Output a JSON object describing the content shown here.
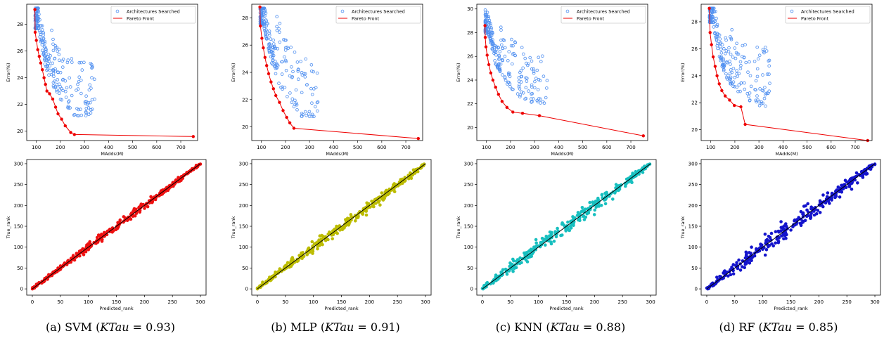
{
  "captions": [
    {
      "label": "(a) SVM (",
      "kt": "KTau",
      "tail": " = 0.93)"
    },
    {
      "label": "(b) MLP (",
      "kt": "KTau",
      "tail": " = 0.91)"
    },
    {
      "label": "(c) KNN (",
      "kt": "KTau",
      "tail": " = 0.88)"
    },
    {
      "label": "(d) RF (",
      "kt": "KTau",
      "tail": " = 0.85)"
    }
  ],
  "chart_data": [
    {
      "panel": "a-top",
      "type": "scatter",
      "xlabel": "MAdds(M)",
      "ylabel": "Error(%)",
      "xlim": [
        60,
        770
      ],
      "ylim": [
        19.3,
        29.5
      ],
      "xticks": [
        100,
        200,
        300,
        400,
        500,
        600,
        700
      ],
      "yticks": [
        20,
        22,
        24,
        26,
        28
      ],
      "legend": {
        "placement": "top-right",
        "entries": [
          "Architectures Searched",
          "Pareto Front"
        ]
      },
      "colors": {
        "searched": "#4f8ff0",
        "pareto": "#ee0000"
      },
      "pareto": [
        [
          94,
          29.1
        ],
        [
          95,
          27.4
        ],
        [
          100,
          26.8
        ],
        [
          106,
          26.1
        ],
        [
          112,
          25.6
        ],
        [
          118,
          25.1
        ],
        [
          125,
          24.6
        ],
        [
          132,
          24.0
        ],
        [
          138,
          23.5
        ],
        [
          144,
          23.0
        ],
        [
          155,
          22.8
        ],
        [
          168,
          22.4
        ],
        [
          180,
          21.8
        ],
        [
          190,
          21.3
        ],
        [
          205,
          20.9
        ],
        [
          220,
          20.4
        ],
        [
          243,
          19.9
        ],
        [
          258,
          19.75
        ],
        [
          752,
          19.6
        ]
      ],
      "searched": {
        "seed": 11,
        "count": 230,
        "front": [
          [
            100,
            27.5
          ],
          [
            130,
            24.6
          ],
          [
            160,
            23.2
          ],
          [
            200,
            22.0
          ],
          [
            250,
            21.0
          ]
        ],
        "spreadX": 250,
        "spreadY": 4.2,
        "xmax": 480
      }
    },
    {
      "panel": "b-top",
      "type": "scatter",
      "xlabel": "MAdds(M)",
      "ylabel": "Error(%)",
      "xlim": [
        60,
        770
      ],
      "ylim": [
        19.0,
        29.0
      ],
      "xticks": [
        100,
        200,
        300,
        400,
        500,
        600,
        700
      ],
      "yticks": [
        20,
        22,
        24,
        26,
        28
      ],
      "legend": {
        "placement": "top-right",
        "entries": [
          "Architectures Searched",
          "Pareto Front"
        ]
      },
      "colors": {
        "searched": "#4f8ff0",
        "pareto": "#ee0000"
      },
      "pareto": [
        [
          94,
          28.8
        ],
        [
          96,
          27.4
        ],
        [
          102,
          26.5
        ],
        [
          108,
          25.8
        ],
        [
          115,
          25.1
        ],
        [
          122,
          24.5
        ],
        [
          130,
          23.9
        ],
        [
          140,
          23.3
        ],
        [
          150,
          22.8
        ],
        [
          160,
          22.3
        ],
        [
          175,
          21.8
        ],
        [
          190,
          21.2
        ],
        [
          205,
          20.7
        ],
        [
          218,
          20.3
        ],
        [
          235,
          19.9
        ],
        [
          752,
          19.15
        ]
      ],
      "searched": {
        "seed": 23,
        "count": 230,
        "front": [
          [
            100,
            27.4
          ],
          [
            135,
            24.5
          ],
          [
            165,
            23.0
          ],
          [
            210,
            21.6
          ],
          [
            260,
            20.6
          ]
        ],
        "spreadX": 240,
        "spreadY": 4.6,
        "xmax": 450
      }
    },
    {
      "panel": "c-top",
      "type": "scatter",
      "xlabel": "MAdds(M)",
      "ylabel": "Error(%)",
      "xlim": [
        60,
        770
      ],
      "ylim": [
        18.9,
        30.4
      ],
      "xticks": [
        100,
        200,
        300,
        400,
        500,
        600,
        700
      ],
      "yticks": [
        20,
        22,
        24,
        26,
        28,
        30
      ],
      "legend": {
        "placement": "top-right",
        "entries": [
          "Architectures Searched",
          "Pareto Front"
        ]
      },
      "colors": {
        "searched": "#4f8ff0",
        "pareto": "#ee0000"
      },
      "pareto": [
        [
          94,
          28.6
        ],
        [
          95,
          27.6
        ],
        [
          98,
          26.8
        ],
        [
          103,
          26.1
        ],
        [
          110,
          25.3
        ],
        [
          118,
          24.6
        ],
        [
          127,
          24.0
        ],
        [
          138,
          23.4
        ],
        [
          150,
          22.8
        ],
        [
          165,
          22.2
        ],
        [
          185,
          21.7
        ],
        [
          210,
          21.3
        ],
        [
          250,
          21.2
        ],
        [
          320,
          21.0
        ],
        [
          752,
          19.3
        ]
      ],
      "searched": {
        "seed": 37,
        "count": 230,
        "front": [
          [
            100,
            27.8
          ],
          [
            130,
            25.2
          ],
          [
            170,
            23.7
          ],
          [
            230,
            22.4
          ],
          [
            300,
            21.8
          ]
        ],
        "spreadX": 260,
        "spreadY": 4.4,
        "xmax": 490
      }
    },
    {
      "panel": "d-top",
      "type": "scatter",
      "xlabel": "MAdds(M)",
      "ylabel": "Error(%)",
      "xlim": [
        60,
        770
      ],
      "ylim": [
        19.2,
        29.3
      ],
      "xticks": [
        100,
        200,
        300,
        400,
        500,
        600,
        700
      ],
      "yticks": [
        20,
        22,
        24,
        26,
        28
      ],
      "legend": {
        "placement": "top-right",
        "entries": [
          "Architectures Searched",
          "Pareto Front"
        ]
      },
      "colors": {
        "searched": "#4f8ff0",
        "pareto": "#ee0000"
      },
      "pareto": [
        [
          94,
          29.0
        ],
        [
          97,
          27.2
        ],
        [
          103,
          26.3
        ],
        [
          110,
          25.4
        ],
        [
          118,
          24.7
        ],
        [
          126,
          24.0
        ],
        [
          135,
          23.4
        ],
        [
          146,
          22.9
        ],
        [
          160,
          22.5
        ],
        [
          178,
          22.2
        ],
        [
          198,
          21.8
        ],
        [
          225,
          21.7
        ],
        [
          243,
          20.4
        ],
        [
          752,
          19.2
        ]
      ],
      "searched": {
        "seed": 51,
        "count": 230,
        "front": [
          [
            100,
            27.8
          ],
          [
            130,
            24.9
          ],
          [
            165,
            23.4
          ],
          [
            215,
            22.5
          ],
          [
            270,
            21.6
          ]
        ],
        "spreadX": 250,
        "spreadY": 4.4,
        "xmax": 470
      }
    },
    {
      "panel": "a-bottom",
      "type": "scatter",
      "xlabel": "Predicted_rank",
      "ylabel": "True_rank",
      "xlim": [
        -10,
        310
      ],
      "ylim": [
        -15,
        310
      ],
      "xticks": [
        0,
        50,
        100,
        150,
        200,
        250,
        300
      ],
      "yticks": [
        0,
        50,
        100,
        150,
        200,
        250,
        300
      ],
      "color": "#ee1111",
      "diagonal": true,
      "points": {
        "seed": 101,
        "count": 300,
        "noise": 10
      }
    },
    {
      "panel": "b-bottom",
      "type": "scatter",
      "xlabel": "Predicted_rank",
      "ylabel": "True_rank",
      "xlim": [
        -10,
        310
      ],
      "ylim": [
        -15,
        310
      ],
      "xticks": [
        0,
        50,
        100,
        150,
        200,
        250,
        300
      ],
      "yticks": [
        0,
        50,
        100,
        150,
        200,
        250,
        300
      ],
      "color": "#bcbc00",
      "diagonal": true,
      "points": {
        "seed": 202,
        "count": 300,
        "noise": 14
      }
    },
    {
      "panel": "c-bottom",
      "type": "scatter",
      "xlabel": "Predicted_rank",
      "ylabel": "True_rank",
      "xlim": [
        -10,
        310
      ],
      "ylim": [
        -15,
        310
      ],
      "xticks": [
        0,
        50,
        100,
        150,
        200,
        250,
        300
      ],
      "yticks": [
        0,
        50,
        100,
        150,
        200,
        250,
        300
      ],
      "color": "#17bfbf",
      "diagonal": true,
      "points": {
        "seed": 303,
        "count": 300,
        "noise": 18
      }
    },
    {
      "panel": "d-bottom",
      "type": "scatter",
      "xlabel": "Predicted_rank",
      "ylabel": "True_rank",
      "xlim": [
        -10,
        310
      ],
      "ylim": [
        -15,
        310
      ],
      "xticks": [
        0,
        50,
        100,
        150,
        200,
        250,
        300
      ],
      "yticks": [
        0,
        50,
        100,
        150,
        200,
        250,
        300
      ],
      "color": "#1414cc",
      "diagonal": true,
      "points": {
        "seed": 404,
        "count": 300,
        "noise": 22
      }
    }
  ]
}
